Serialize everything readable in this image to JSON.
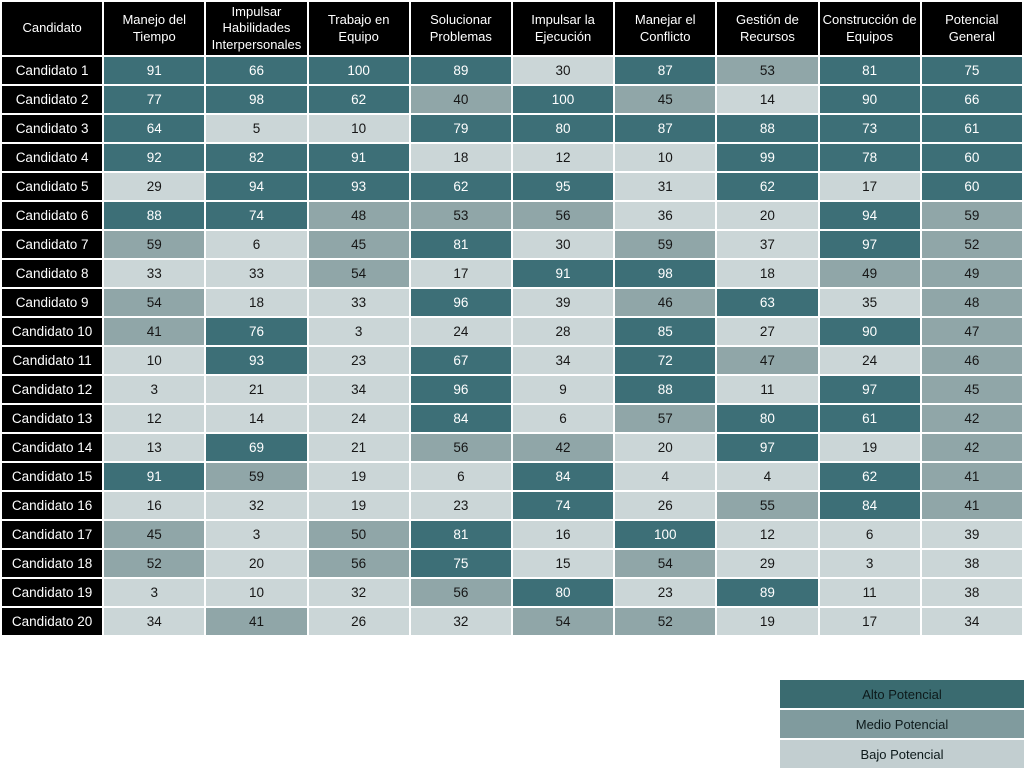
{
  "chart_data": {
    "type": "heatmap",
    "title": "",
    "columns": [
      "Candidato",
      "Manejo del Tiempo",
      "Impulsar Habilidades Interpersonales",
      "Trabajo en Equipo",
      "Solucionar Problemas",
      "Impulsar la Ejecución",
      "Manejar el Conflicto",
      "Gestión de Recursos",
      "Construcción de Equipos",
      "Potencial General"
    ],
    "rows": [
      {
        "label": "Candidato 1",
        "values": [
          91,
          66,
          100,
          89,
          30,
          87,
          53,
          81,
          75
        ]
      },
      {
        "label": "Candidato 2",
        "values": [
          77,
          98,
          62,
          40,
          100,
          45,
          14,
          90,
          66
        ]
      },
      {
        "label": "Candidato 3",
        "values": [
          64,
          5,
          10,
          79,
          80,
          87,
          88,
          73,
          61
        ]
      },
      {
        "label": "Candidato 4",
        "values": [
          92,
          82,
          91,
          18,
          12,
          10,
          99,
          78,
          60
        ]
      },
      {
        "label": "Candidato 5",
        "values": [
          29,
          94,
          93,
          62,
          95,
          31,
          62,
          17,
          60
        ]
      },
      {
        "label": "Candidato 6",
        "values": [
          88,
          74,
          48,
          53,
          56,
          36,
          20,
          94,
          59
        ]
      },
      {
        "label": "Candidato 7",
        "values": [
          59,
          6,
          45,
          81,
          30,
          59,
          37,
          97,
          52
        ]
      },
      {
        "label": "Candidato 8",
        "values": [
          33,
          33,
          54,
          17,
          91,
          98,
          18,
          49,
          49
        ]
      },
      {
        "label": "Candidato 9",
        "values": [
          54,
          18,
          33,
          96,
          39,
          46,
          63,
          35,
          48
        ]
      },
      {
        "label": "Candidato 10",
        "values": [
          41,
          76,
          3,
          24,
          28,
          85,
          27,
          90,
          47
        ]
      },
      {
        "label": "Candidato 11",
        "values": [
          10,
          93,
          23,
          67,
          34,
          72,
          47,
          24,
          46
        ]
      },
      {
        "label": "Candidato 12",
        "values": [
          3,
          21,
          34,
          96,
          9,
          88,
          11,
          97,
          45
        ]
      },
      {
        "label": "Candidato 13",
        "values": [
          12,
          14,
          24,
          84,
          6,
          57,
          80,
          61,
          42
        ]
      },
      {
        "label": "Candidato 14",
        "values": [
          13,
          69,
          21,
          56,
          42,
          20,
          97,
          19,
          42
        ]
      },
      {
        "label": "Candidato 15",
        "values": [
          91,
          59,
          19,
          6,
          84,
          4,
          4,
          62,
          41
        ]
      },
      {
        "label": "Candidato 16",
        "values": [
          16,
          32,
          19,
          23,
          74,
          26,
          55,
          84,
          41
        ]
      },
      {
        "label": "Candidato 17",
        "values": [
          45,
          3,
          50,
          81,
          16,
          100,
          12,
          6,
          39
        ]
      },
      {
        "label": "Candidato 18",
        "values": [
          52,
          20,
          56,
          75,
          15,
          54,
          29,
          3,
          38
        ]
      },
      {
        "label": "Candidato 19",
        "values": [
          3,
          10,
          32,
          56,
          80,
          23,
          89,
          11,
          38
        ]
      },
      {
        "label": "Candidato 20",
        "values": [
          34,
          41,
          26,
          32,
          54,
          52,
          19,
          17,
          34
        ]
      }
    ],
    "value_range": [
      0,
      100
    ],
    "level_thresholds": {
      "alto_min": 60,
      "medio_min": 40
    },
    "legend": [
      {
        "label": "Alto Potencial",
        "level": "alto"
      },
      {
        "label": "Medio Potencial",
        "level": "medio"
      },
      {
        "label": "Bajo Potencial",
        "level": "bajo"
      }
    ],
    "colors": {
      "alto": "#3D6F77",
      "medio": "#90A6A8",
      "bajo": "#CBD6D7",
      "legend_alto": "#3A6B70",
      "legend_medio": "#809B9E",
      "legend_bajo": "#C2CED0",
      "header_bg": "#000000",
      "header_text": "#FFFFFF",
      "grid_line": "#FFFFFF"
    },
    "legend_position": "bottom-right",
    "grid": true
  }
}
